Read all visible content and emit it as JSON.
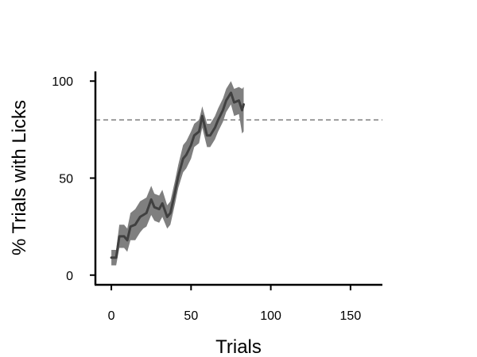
{
  "chart_data": {
    "type": "line",
    "title": "",
    "xlabel": "Trials",
    "ylabel": "% Trials with Licks",
    "xlim": [
      -10,
      170
    ],
    "ylim": [
      -5,
      105
    ],
    "xticks": [
      0,
      50,
      100,
      150
    ],
    "yticks": [
      0,
      50,
      100
    ],
    "grid": false,
    "legend": "none",
    "reference_line": {
      "y": 80,
      "style": "dashed",
      "color": "#7f7f7f"
    },
    "series": [
      {
        "color": "#404040",
        "band_color": "#7f7f7f",
        "x": [
          0,
          3,
          5,
          8,
          10,
          12,
          15,
          18,
          20,
          22,
          25,
          27,
          30,
          32,
          35,
          37,
          40,
          42,
          45,
          47,
          50,
          52,
          55,
          57,
          60,
          62,
          65,
          67,
          70,
          72,
          75,
          77,
          80,
          82,
          83
        ],
        "y": [
          9,
          9,
          20,
          20,
          18,
          25,
          26,
          30,
          31,
          32,
          39,
          35,
          34,
          37,
          30,
          32,
          43,
          51,
          60,
          62,
          67,
          72,
          74,
          82,
          72,
          72,
          76,
          80,
          85,
          90,
          94,
          89,
          90,
          85,
          88
        ],
        "lower": [
          5,
          5,
          14,
          14,
          12,
          18,
          18,
          22,
          24,
          25,
          31,
          28,
          27,
          30,
          24,
          26,
          37,
          45,
          53,
          55,
          60,
          66,
          68,
          76,
          66,
          66,
          70,
          74,
          79,
          84,
          88,
          82,
          83,
          73,
          74
        ],
        "upper": [
          13,
          13,
          26,
          26,
          24,
          32,
          34,
          38,
          39,
          40,
          46,
          42,
          41,
          44,
          36,
          38,
          49,
          57,
          67,
          69,
          74,
          78,
          80,
          87,
          78,
          78,
          82,
          86,
          91,
          96,
          100,
          96,
          97,
          96,
          97
        ]
      }
    ]
  }
}
